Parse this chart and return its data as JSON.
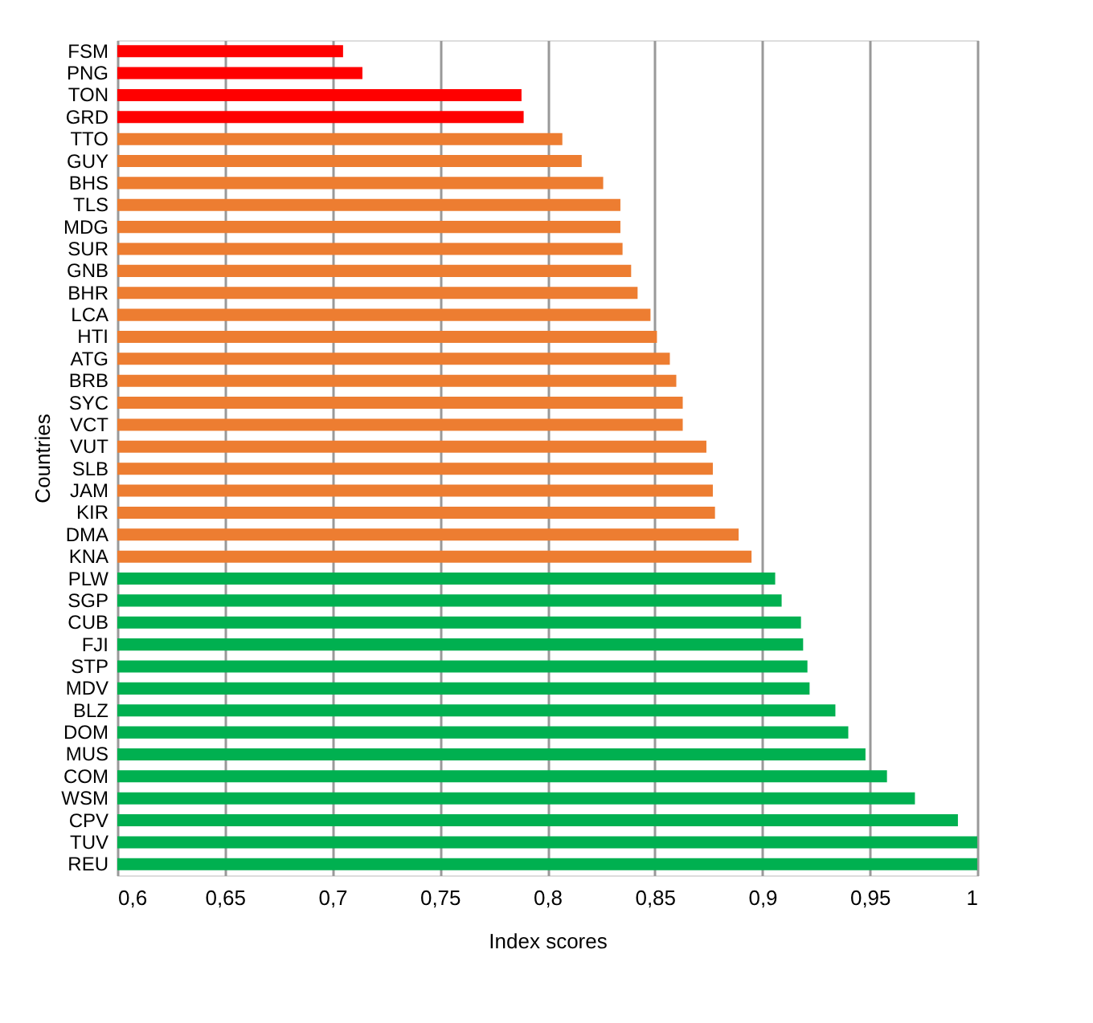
{
  "chart_data": {
    "type": "bar",
    "orientation": "horizontal",
    "xlabel": "Index scores",
    "ylabel": "Countries",
    "categories": [
      "FSM",
      "PNG",
      "TON",
      "GRD",
      "TTO",
      "GUY",
      "BHS",
      "TLS",
      "MDG",
      "SUR",
      "GNB",
      "BHR",
      "LCA",
      "HTI",
      "ATG",
      "BRB",
      "SYC",
      "VCT",
      "VUT",
      "SLB",
      "JAM",
      "KIR",
      "DMA",
      "KNA",
      "PLW",
      "SGP",
      "CUB",
      "FJI",
      "STP",
      "MDV",
      "BLZ",
      "DOM",
      "MUS",
      "COM",
      "WSM",
      "CPV",
      "TUV",
      "REU"
    ],
    "values": [
      0.705,
      0.714,
      0.788,
      0.789,
      0.807,
      0.816,
      0.826,
      0.834,
      0.834,
      0.835,
      0.839,
      0.842,
      0.848,
      0.851,
      0.857,
      0.86,
      0.863,
      0.863,
      0.874,
      0.877,
      0.877,
      0.878,
      0.889,
      0.895,
      0.906,
      0.909,
      0.918,
      0.919,
      0.921,
      0.922,
      0.934,
      0.94,
      0.948,
      0.958,
      0.971,
      0.991,
      1.0,
      1.0
    ],
    "colors": [
      "#ff0000",
      "#ff0000",
      "#ff0000",
      "#ff0000",
      "#ed7d31",
      "#ed7d31",
      "#ed7d31",
      "#ed7d31",
      "#ed7d31",
      "#ed7d31",
      "#ed7d31",
      "#ed7d31",
      "#ed7d31",
      "#ed7d31",
      "#ed7d31",
      "#ed7d31",
      "#ed7d31",
      "#ed7d31",
      "#ed7d31",
      "#ed7d31",
      "#ed7d31",
      "#ed7d31",
      "#ed7d31",
      "#ed7d31",
      "#00b050",
      "#00b050",
      "#00b050",
      "#00b050",
      "#00b050",
      "#00b050",
      "#00b050",
      "#00b050",
      "#00b050",
      "#00b050",
      "#00b050",
      "#00b050",
      "#00b050",
      "#00b050"
    ],
    "xlim": [
      0.6,
      1
    ],
    "xticks": [
      {
        "value": 0.6,
        "label": "0,6"
      },
      {
        "value": 0.65,
        "label": "0,65"
      },
      {
        "value": 0.7,
        "label": "0,7"
      },
      {
        "value": 0.75,
        "label": "0,75"
      },
      {
        "value": 0.8,
        "label": "0,8"
      },
      {
        "value": 0.85,
        "label": "0,85"
      },
      {
        "value": 0.9,
        "label": "0,9"
      },
      {
        "value": 0.95,
        "label": "0,95"
      },
      {
        "value": 1,
        "label": "1"
      }
    ],
    "grid": "x",
    "legend": false
  }
}
